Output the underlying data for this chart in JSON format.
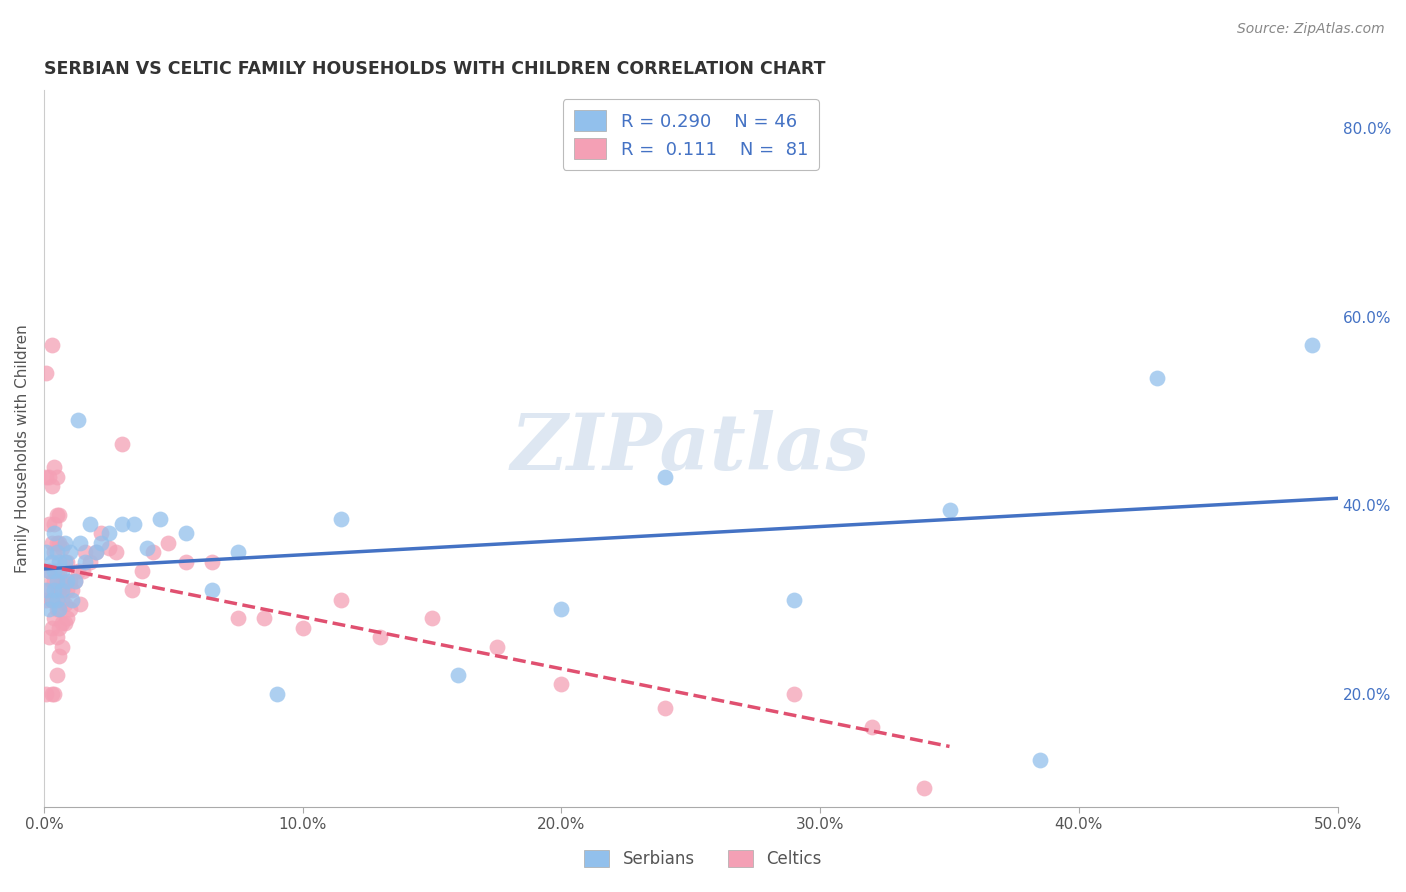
{
  "title": "SERBIAN VS CELTIC FAMILY HOUSEHOLDS WITH CHILDREN CORRELATION CHART",
  "source": "Source: ZipAtlas.com",
  "ylabel": "Family Households with Children",
  "xlim": [
    0.0,
    0.5
  ],
  "ylim": [
    0.08,
    0.84
  ],
  "xticks": [
    0.0,
    0.1,
    0.2,
    0.3,
    0.4,
    0.5
  ],
  "xtick_labels": [
    "0.0%",
    "10.0%",
    "20.0%",
    "30.0%",
    "40.0%",
    "50.0%"
  ],
  "yticks_right": [
    0.2,
    0.4,
    0.6,
    0.8
  ],
  "ytick_labels_right": [
    "20.0%",
    "40.0%",
    "60.0%",
    "80.0%"
  ],
  "legend_labels": [
    "Serbians",
    "Celtics"
  ],
  "serbian_color": "#92c0ec",
  "celtic_color": "#f4a0b5",
  "serbian_line_color": "#4472c4",
  "celtic_line_color": "#e05070",
  "serbian_R": 0.29,
  "serbian_N": 46,
  "celtic_R": 0.111,
  "celtic_N": 81,
  "watermark": "ZIPatlas",
  "watermark_color": "#c8d8ea",
  "background_color": "#ffffff",
  "grid_color": "#cccccc",
  "title_color": "#333333",
  "axis_label_color": "#555555",
  "serbian_x": [
    0.001,
    0.001,
    0.002,
    0.002,
    0.003,
    0.003,
    0.004,
    0.004,
    0.004,
    0.005,
    0.005,
    0.005,
    0.006,
    0.006,
    0.007,
    0.007,
    0.008,
    0.008,
    0.009,
    0.01,
    0.011,
    0.012,
    0.013,
    0.014,
    0.016,
    0.018,
    0.02,
    0.022,
    0.025,
    0.03,
    0.035,
    0.04,
    0.045,
    0.055,
    0.065,
    0.075,
    0.09,
    0.115,
    0.16,
    0.2,
    0.24,
    0.29,
    0.35,
    0.385,
    0.43,
    0.49
  ],
  "serbian_y": [
    0.31,
    0.35,
    0.29,
    0.33,
    0.3,
    0.34,
    0.31,
    0.33,
    0.37,
    0.3,
    0.32,
    0.35,
    0.29,
    0.34,
    0.33,
    0.31,
    0.34,
    0.36,
    0.32,
    0.35,
    0.3,
    0.32,
    0.49,
    0.36,
    0.34,
    0.38,
    0.35,
    0.36,
    0.37,
    0.38,
    0.38,
    0.355,
    0.385,
    0.37,
    0.31,
    0.35,
    0.2,
    0.385,
    0.22,
    0.29,
    0.43,
    0.3,
    0.395,
    0.13,
    0.535,
    0.57
  ],
  "celtic_x": [
    0.001,
    0.001,
    0.001,
    0.001,
    0.002,
    0.002,
    0.002,
    0.002,
    0.002,
    0.003,
    0.003,
    0.003,
    0.003,
    0.003,
    0.003,
    0.003,
    0.004,
    0.004,
    0.004,
    0.004,
    0.004,
    0.004,
    0.005,
    0.005,
    0.005,
    0.005,
    0.005,
    0.005,
    0.005,
    0.005,
    0.006,
    0.006,
    0.006,
    0.006,
    0.006,
    0.006,
    0.006,
    0.007,
    0.007,
    0.007,
    0.007,
    0.007,
    0.008,
    0.008,
    0.008,
    0.008,
    0.009,
    0.009,
    0.009,
    0.01,
    0.01,
    0.011,
    0.012,
    0.013,
    0.014,
    0.015,
    0.016,
    0.018,
    0.02,
    0.022,
    0.025,
    0.028,
    0.03,
    0.034,
    0.038,
    0.042,
    0.048,
    0.055,
    0.065,
    0.075,
    0.085,
    0.1,
    0.115,
    0.13,
    0.15,
    0.175,
    0.2,
    0.24,
    0.29,
    0.32,
    0.34
  ],
  "celtic_y": [
    0.3,
    0.43,
    0.54,
    0.2,
    0.26,
    0.31,
    0.33,
    0.38,
    0.43,
    0.2,
    0.27,
    0.3,
    0.32,
    0.36,
    0.42,
    0.57,
    0.2,
    0.28,
    0.32,
    0.35,
    0.38,
    0.44,
    0.22,
    0.26,
    0.29,
    0.31,
    0.33,
    0.36,
    0.39,
    0.43,
    0.24,
    0.27,
    0.29,
    0.31,
    0.33,
    0.36,
    0.39,
    0.25,
    0.275,
    0.3,
    0.32,
    0.355,
    0.275,
    0.295,
    0.315,
    0.34,
    0.28,
    0.31,
    0.34,
    0.29,
    0.32,
    0.31,
    0.32,
    0.33,
    0.295,
    0.33,
    0.35,
    0.34,
    0.35,
    0.37,
    0.355,
    0.35,
    0.465,
    0.31,
    0.33,
    0.35,
    0.36,
    0.34,
    0.34,
    0.28,
    0.28,
    0.27,
    0.3,
    0.26,
    0.28,
    0.25,
    0.21,
    0.185,
    0.2,
    0.165,
    0.1
  ]
}
